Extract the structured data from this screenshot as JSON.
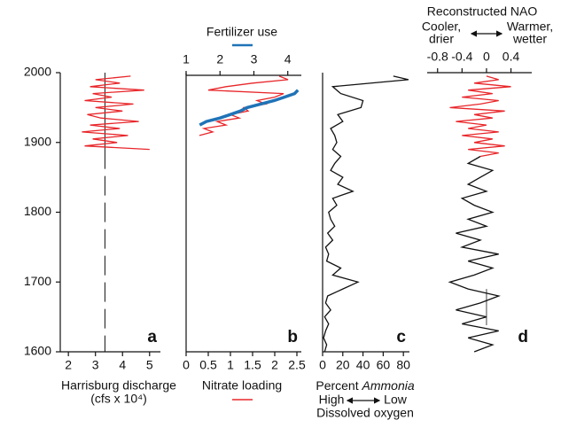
{
  "chart_data": [
    {
      "type": "line",
      "panel": "a",
      "xlabel": "Harrisburg discharge",
      "xlabel2": "(cfs x 10⁴)",
      "xlim": [
        1.7,
        5.4
      ],
      "xticks": [
        2,
        3,
        4,
        5
      ],
      "ylim": [
        1600,
        2000
      ],
      "yticks": [
        1600,
        1700,
        1800,
        1900,
        2000
      ],
      "vline": 3.35,
      "series": [
        {
          "color": "#e8262a",
          "years": [
            1890,
            1895,
            1900,
            1905,
            1910,
            1915,
            1920,
            1925,
            1930,
            1935,
            1940,
            1945,
            1950,
            1955,
            1960,
            1965,
            1970,
            1975,
            1980,
            1985,
            1990,
            1995
          ],
          "values": [
            5.0,
            2.6,
            3.8,
            2.9,
            4.2,
            2.5,
            3.9,
            2.8,
            4.6,
            3.2,
            2.7,
            4.0,
            3.0,
            4.4,
            2.6,
            3.6,
            2.9,
            4.8,
            2.8,
            3.9,
            3.0,
            4.3
          ]
        }
      ]
    },
    {
      "type": "line",
      "panel": "b",
      "xlim": [
        0,
        2.6
      ],
      "xticks": [
        0,
        0.5,
        1,
        1.5,
        2,
        2.5
      ],
      "x2lim": [
        1,
        4.4
      ],
      "x2ticks": [
        1,
        2,
        3,
        4
      ],
      "series": [
        {
          "name": "Nitrate loading",
          "color": "#e8262a",
          "years": [
            1910,
            1915,
            1920,
            1925,
            1930,
            1935,
            1940,
            1945,
            1950,
            1955,
            1960,
            1965,
            1970,
            1975,
            1980,
            1985,
            1990,
            1995
          ],
          "values": [
            0.3,
            0.6,
            0.4,
            0.9,
            0.7,
            1.2,
            1.0,
            1.4,
            1.3,
            1.8,
            1.6,
            2.0,
            2.2,
            0.5,
            0.9,
            1.5,
            2.3,
            2.1
          ]
        },
        {
          "name": "Fertilizer use",
          "color": "#1f73b7",
          "axis": "x2",
          "years": [
            1925,
            1930,
            1935,
            1940,
            1945,
            1950,
            1955,
            1960,
            1965,
            1970,
            1975
          ],
          "values": [
            1.4,
            1.6,
            2.0,
            2.3,
            2.6,
            2.8,
            3.2,
            3.6,
            3.9,
            4.2,
            4.3
          ]
        }
      ]
    },
    {
      "type": "line",
      "panel": "c",
      "xlabel": "Percent",
      "xlabel_italic": "Ammonia",
      "high": "High",
      "low": "Low",
      "xlabel2": "Dissolved oxygen",
      "xlim": [
        0,
        86
      ],
      "xticks": [
        0,
        20,
        40,
        60,
        80
      ],
      "series": [
        {
          "color": "#111111",
          "years": [
            1600,
            1610,
            1620,
            1630,
            1640,
            1650,
            1660,
            1670,
            1680,
            1690,
            1700,
            1710,
            1720,
            1730,
            1740,
            1750,
            1760,
            1770,
            1780,
            1790,
            1800,
            1810,
            1820,
            1830,
            1840,
            1850,
            1860,
            1870,
            1880,
            1890,
            1900,
            1910,
            1920,
            1930,
            1940,
            1950,
            1960,
            1970,
            1980,
            1990,
            1995
          ],
          "values": [
            2,
            4,
            1,
            3,
            6,
            2,
            8,
            3,
            5,
            20,
            35,
            10,
            18,
            4,
            6,
            3,
            10,
            5,
            12,
            8,
            6,
            14,
            10,
            30,
            15,
            20,
            8,
            12,
            18,
            10,
            14,
            12,
            8,
            20,
            15,
            38,
            40,
            18,
            10,
            85,
            70
          ]
        }
      ]
    },
    {
      "type": "line",
      "panel": "d",
      "title": "Reconstructed NAO",
      "left_label": [
        "Cooler,",
        "drier"
      ],
      "right_label": [
        "Warmer,",
        "wetter"
      ],
      "xlim": [
        -0.97,
        0.74
      ],
      "xticks": [
        -0.8,
        -0.4,
        0,
        0.4
      ],
      "series": [
        {
          "color": "#111111",
          "years": [
            1600,
            1610,
            1620,
            1630,
            1640,
            1650,
            1660,
            1670,
            1680,
            1690,
            1700,
            1710,
            1720,
            1730,
            1740,
            1750,
            1760,
            1770,
            1780,
            1790,
            1800,
            1810,
            1820,
            1830,
            1840,
            1850,
            1860,
            1870,
            1880
          ],
          "values": [
            -0.2,
            0.1,
            -0.3,
            0.2,
            -0.4,
            0.0,
            -0.5,
            -0.1,
            0.2,
            -0.3,
            -0.6,
            -0.2,
            0.1,
            -0.3,
            0.2,
            -0.4,
            -0.1,
            -0.5,
            0.0,
            -0.3,
            0.1,
            -0.2,
            -0.4,
            0.0,
            -0.3,
            -0.1,
            0.1,
            -0.3,
            -0.1
          ]
        },
        {
          "color": "#e8262a",
          "years": [
            1880,
            1885,
            1890,
            1895,
            1900,
            1905,
            1910,
            1915,
            1920,
            1925,
            1930,
            1935,
            1940,
            1945,
            1950,
            1955,
            1960,
            1965,
            1970,
            1975,
            1980,
            1985,
            1990,
            1995
          ],
          "values": [
            -0.1,
            0.2,
            -0.3,
            0.3,
            -0.2,
            0.1,
            -0.4,
            0.2,
            -0.3,
            0.0,
            -0.5,
            0.1,
            -0.2,
            0.3,
            -0.6,
            -0.1,
            0.2,
            -0.4,
            0.1,
            -0.3,
            0.4,
            -0.2,
            0.2,
            0.0
          ]
        }
      ]
    }
  ]
}
